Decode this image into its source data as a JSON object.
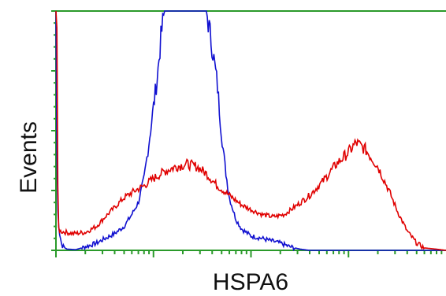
{
  "chart_data": {
    "type": "line",
    "title": "",
    "xlabel": "HSPA6",
    "ylabel": "Events",
    "x_scale": "log",
    "xlim": [
      1,
      10000
    ],
    "ylim": [
      0,
      100
    ],
    "grid": false,
    "legend": "none",
    "series": [
      {
        "color": "#1010d0",
        "points": [
          [
            1.0,
            100
          ],
          [
            1.03,
            20
          ],
          [
            1.08,
            8
          ],
          [
            1.15,
            2
          ],
          [
            1.3,
            0.5
          ],
          [
            1.6,
            0.3
          ],
          [
            2.0,
            1.5
          ],
          [
            2.6,
            3
          ],
          [
            3.2,
            5
          ],
          [
            4.0,
            7
          ],
          [
            5.0,
            10
          ],
          [
            6.0,
            15
          ],
          [
            7.0,
            20
          ],
          [
            8.0,
            30
          ],
          [
            9.0,
            45
          ],
          [
            10.0,
            60
          ],
          [
            11.0,
            73
          ],
          [
            12.0,
            90
          ],
          [
            13.0,
            100
          ],
          [
            20.0,
            100
          ],
          [
            30.0,
            100
          ],
          [
            35.0,
            100
          ],
          [
            40.0,
            85
          ],
          [
            45.0,
            70
          ],
          [
            50.0,
            48
          ],
          [
            55.0,
            33
          ],
          [
            60.0,
            22
          ],
          [
            70.0,
            13
          ],
          [
            80.0,
            9
          ],
          [
            100.0,
            6
          ],
          [
            130.0,
            5
          ],
          [
            160.0,
            4
          ],
          [
            200.0,
            3
          ],
          [
            250.0,
            1.5
          ],
          [
            320.0,
            0.5
          ],
          [
            400.0,
            0
          ],
          [
            10000.0,
            0
          ]
        ]
      },
      {
        "color": "#e00000",
        "points": [
          [
            1.0,
            100
          ],
          [
            1.02,
            100
          ],
          [
            1.05,
            10
          ],
          [
            1.1,
            8
          ],
          [
            1.5,
            7
          ],
          [
            2.0,
            7.5
          ],
          [
            2.6,
            10
          ],
          [
            3.2,
            14
          ],
          [
            4.0,
            18
          ],
          [
            5.0,
            22
          ],
          [
            6.5,
            25
          ],
          [
            8.0,
            27
          ],
          [
            10.0,
            30
          ],
          [
            13.0,
            33
          ],
          [
            17.0,
            35
          ],
          [
            22.0,
            36
          ],
          [
            28.0,
            35
          ],
          [
            35.0,
            32
          ],
          [
            45.0,
            27
          ],
          [
            60.0,
            23
          ],
          [
            80.0,
            19
          ],
          [
            100.0,
            17
          ],
          [
            130.0,
            15
          ],
          [
            170.0,
            14
          ],
          [
            220.0,
            15
          ],
          [
            300.0,
            19
          ],
          [
            400.0,
            23
          ],
          [
            550.0,
            29
          ],
          [
            750.0,
            36
          ],
          [
            1000.0,
            41
          ],
          [
            1200.0,
            45
          ],
          [
            1500.0,
            42
          ],
          [
            2000.0,
            35
          ],
          [
            2600.0,
            25
          ],
          [
            3200.0,
            16
          ],
          [
            4000.0,
            8
          ],
          [
            5000.0,
            3
          ],
          [
            6000.0,
            1
          ],
          [
            8000.0,
            0.5
          ],
          [
            10000.0,
            0
          ]
        ]
      }
    ]
  }
}
